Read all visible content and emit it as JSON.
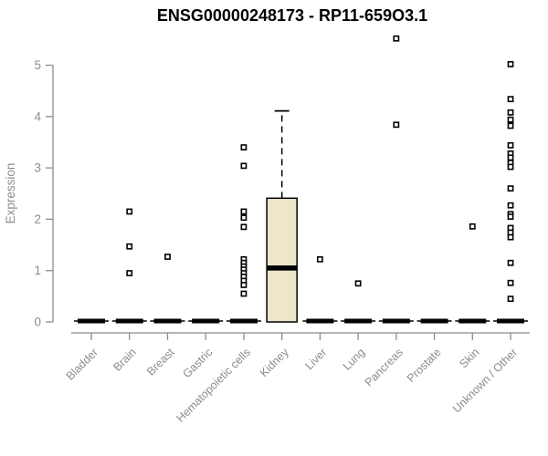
{
  "chart_data": {
    "type": "boxplot",
    "title": "ENSG00000248173 - RP11-659O3.1",
    "ylabel": "Expression",
    "yticks": [
      0,
      1,
      2,
      3,
      4,
      5
    ],
    "ylim": [
      0,
      5.6
    ],
    "grid": false,
    "legend": "none",
    "categories": [
      "Bladder",
      "Brain",
      "Breast",
      "Gastric",
      "Hematopoietic cells",
      "Kidney",
      "Liver",
      "Lung",
      "Pancreas",
      "Prostate",
      "Skin",
      "Unknown / Other"
    ],
    "series": [
      {
        "category": "Bladder",
        "q1": 0,
        "median": 0,
        "q3": 0,
        "whisker_low": 0,
        "whisker_high": 0,
        "outliers": []
      },
      {
        "category": "Brain",
        "q1": 0,
        "median": 0,
        "q3": 0,
        "whisker_low": 0,
        "whisker_high": 0,
        "outliers": [
          2.15,
          1.47,
          0.95
        ]
      },
      {
        "category": "Breast",
        "q1": 0,
        "median": 0,
        "q3": 0,
        "whisker_low": 0,
        "whisker_high": 0,
        "outliers": [
          1.27
        ]
      },
      {
        "category": "Gastric",
        "q1": 0,
        "median": 0,
        "q3": 0,
        "whisker_low": 0,
        "whisker_high": 0,
        "outliers": []
      },
      {
        "category": "Hematopoietic cells",
        "q1": 0,
        "median": 0,
        "q3": 0,
        "whisker_low": 0,
        "whisker_high": 0,
        "outliers": [
          3.4,
          3.04,
          2.15,
          2.03,
          1.85,
          1.22,
          1.15,
          1.08,
          1.02,
          0.95,
          0.88,
          0.8,
          0.72,
          0.55
        ]
      },
      {
        "category": "Kidney",
        "q1": 0,
        "median": 1.05,
        "q3": 2.41,
        "whisker_low": 0,
        "whisker_high": 4.11,
        "outliers": []
      },
      {
        "category": "Liver",
        "q1": 0,
        "median": 0,
        "q3": 0,
        "whisker_low": 0,
        "whisker_high": 0,
        "outliers": [
          1.22
        ]
      },
      {
        "category": "Lung",
        "q1": 0,
        "median": 0,
        "q3": 0,
        "whisker_low": 0,
        "whisker_high": 0,
        "outliers": [
          0.75
        ]
      },
      {
        "category": "Pancreas",
        "q1": 0,
        "median": 0,
        "q3": 0,
        "whisker_low": 0,
        "whisker_high": 0,
        "outliers": [
          5.52,
          3.84
        ]
      },
      {
        "category": "Prostate",
        "q1": 0,
        "median": 0,
        "q3": 0,
        "whisker_low": 0,
        "whisker_high": 0,
        "outliers": []
      },
      {
        "category": "Skin",
        "q1": 0,
        "median": 0,
        "q3": 0,
        "whisker_low": 0,
        "whisker_high": 0,
        "outliers": [
          1.86
        ]
      },
      {
        "category": "Unknown / Other",
        "q1": 0,
        "median": 0,
        "q3": 0,
        "whisker_low": 0,
        "whisker_high": 0,
        "outliers": [
          5.02,
          4.34,
          4.08,
          3.94,
          3.82,
          3.44,
          3.28,
          3.2,
          3.1,
          3.02,
          2.6,
          2.27,
          2.1,
          2.05,
          1.83,
          1.74,
          1.65,
          1.15,
          0.76,
          0.45
        ]
      }
    ],
    "colors": {
      "box_fill": "#EDE6CB",
      "box_stroke": "#000000",
      "median": "#000000",
      "axis": "#8C8C8C",
      "tick_text": "#8C8C8C",
      "title_text": "#000000",
      "outlier_stroke": "#000000",
      "outlier_fill": "#FFFFFF",
      "background": "#FFFFFF"
    }
  }
}
